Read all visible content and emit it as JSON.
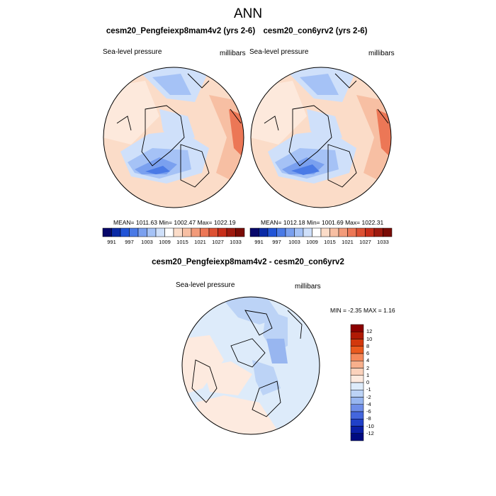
{
  "title": "ANN",
  "panels": [
    {
      "title": "cesm20_Pengfeiexp8mam4v2 (yrs 2-6)",
      "variable": "Sea-level pressure",
      "units": "millibars",
      "stats": "MEAN= 1011.63  Min= 1002.47  Max= 1022.19"
    },
    {
      "title": "cesm20_con6yrv2 (yrs 2-6)",
      "variable": "Sea-level pressure",
      "units": "millibars",
      "stats": "MEAN= 1012.18  Min= 1001.69  Max= 1022.31"
    }
  ],
  "abs_colorbar": {
    "labels": [
      "991",
      "997",
      "1003",
      "1009",
      "1015",
      "1021",
      "1027",
      "1033"
    ],
    "colors": [
      "#08086b",
      "#0a2aa6",
      "#2154d6",
      "#4a7ae6",
      "#7aa0ef",
      "#a5c2f6",
      "#cfe0fa",
      "#ffffff",
      "#fbdcc8",
      "#f7bfa3",
      "#f29b7a",
      "#ec7756",
      "#dd5133",
      "#c72e1a",
      "#9e1a0f",
      "#7a0c06"
    ]
  },
  "diff_panel": {
    "title": "cesm20_Pengfeiexp8mam4v2 - cesm20_con6yrv2",
    "variable": "Sea-level pressure",
    "units": "millibars",
    "minmax": "MIN =  -2.35 MAX =   1.16"
  },
  "diff_colorbar": {
    "labels": [
      "12",
      "10",
      "8",
      "6",
      "4",
      "2",
      "1",
      "0",
      "-1",
      "-2",
      "-4",
      "-6",
      "-8",
      "-10",
      "-12"
    ],
    "colors": [
      "#8b0000",
      "#b01a05",
      "#d2380c",
      "#ea5a1e",
      "#f5895a",
      "#f8b08c",
      "#fbd2bc",
      "#fdeadf",
      "#ddebfa",
      "#bcd3f6",
      "#98b6f0",
      "#6f8ee8",
      "#4466dd",
      "#2040c8",
      "#0a1ea6",
      "#000a80"
    ]
  }
}
